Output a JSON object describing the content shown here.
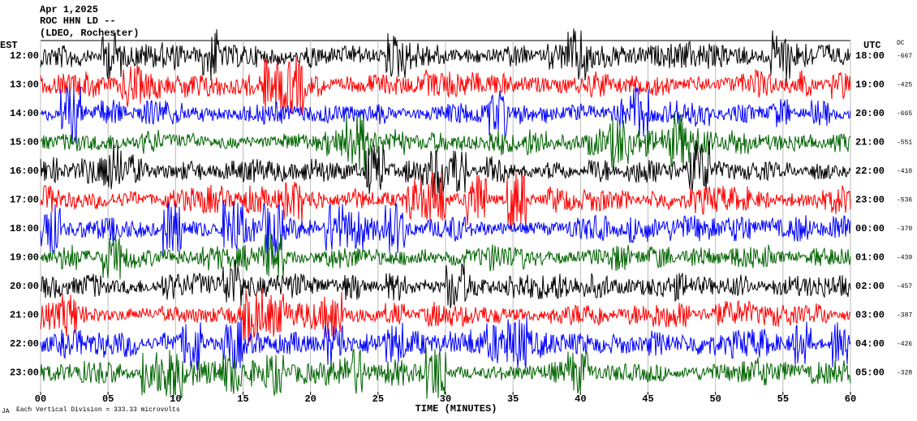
{
  "header": {
    "lines": [
      "Apr 1,2025",
      "ROC HHN LD --",
      "(LDEO, Rochester)"
    ]
  },
  "left_axis": {
    "title": "EST",
    "labels": [
      "12:00",
      "13:00",
      "14:00",
      "15:00",
      "16:00",
      "17:00",
      "18:00",
      "19:00",
      "20:00",
      "21:00",
      "22:00",
      "23:00"
    ]
  },
  "right_axis": {
    "title": "UTC",
    "labels": [
      "18:00",
      "19:00",
      "20:00",
      "21:00",
      "22:00",
      "23:00",
      "00:00",
      "01:00",
      "02:00",
      "03:00",
      "04:00",
      "05:00"
    ]
  },
  "dc": {
    "title": "DC",
    "values": [
      -667,
      -425,
      -665,
      -551,
      -410,
      -536,
      -370,
      -439,
      -457,
      -387,
      -426,
      -328
    ]
  },
  "x_axis": {
    "ticks": [
      "00",
      "05",
      "10",
      "15",
      "20",
      "25",
      "30",
      "35",
      "40",
      "45",
      "50",
      "55",
      "60"
    ],
    "label": "TIME (MINUTES)"
  },
  "footer": {
    "corner": "JA",
    "note": "Each Vertical Division =  333.33 microvolts"
  },
  "trace_colors": [
    "#000000",
    "#ff0000",
    "#0000ff",
    "#006400"
  ]
}
